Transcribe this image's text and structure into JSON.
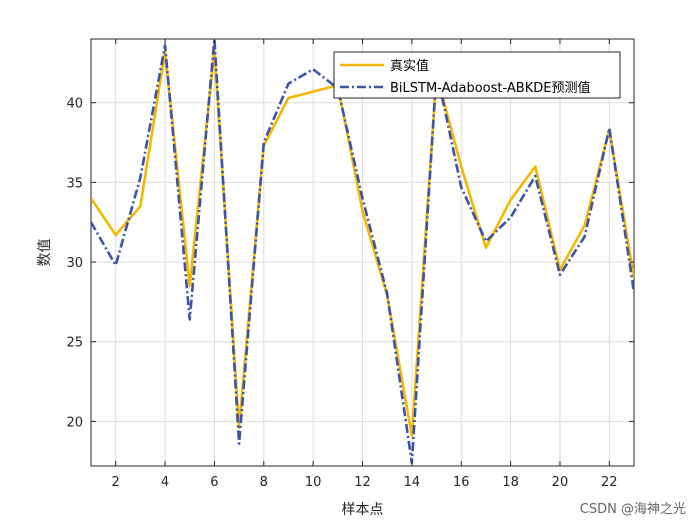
{
  "watermark": "CSDN @海神之光",
  "chart_data": {
    "type": "line",
    "xlabel": "样本点",
    "ylabel": "数值",
    "xlim": [
      1,
      23
    ],
    "ylim": [
      17.2,
      44.0
    ],
    "xticks": [
      2,
      4,
      6,
      8,
      10,
      12,
      14,
      16,
      18,
      20,
      22
    ],
    "yticks": [
      20,
      25,
      30,
      35,
      40
    ],
    "grid": true,
    "legend_position": "top-right",
    "x": [
      1,
      2,
      3,
      4,
      5,
      6,
      7,
      8,
      9,
      10,
      11,
      12,
      13,
      14,
      15,
      16,
      17,
      18,
      19,
      20,
      21,
      22,
      23
    ],
    "series": [
      {
        "name": "真实值",
        "color": "#F5B800",
        "style": "solid",
        "values": [
          34.0,
          31.7,
          33.5,
          43.2,
          28.5,
          43.3,
          19.6,
          37.3,
          40.3,
          40.7,
          41.1,
          33.2,
          27.9,
          19.1,
          41.8,
          36.0,
          30.9,
          33.9,
          36.0,
          29.5,
          32.3,
          38.3,
          29.0
        ]
      },
      {
        "name": "BiLSTM-Adaboost-ABKDE预测值",
        "color": "#3D54A6",
        "style": "dashdot",
        "values": [
          32.5,
          29.8,
          35.3,
          43.6,
          26.4,
          44.0,
          18.6,
          37.5,
          41.2,
          42.1,
          40.9,
          34.0,
          28.0,
          17.4,
          42.0,
          34.7,
          31.3,
          32.8,
          35.4,
          29.2,
          31.6,
          38.4,
          28.1
        ]
      }
    ]
  }
}
